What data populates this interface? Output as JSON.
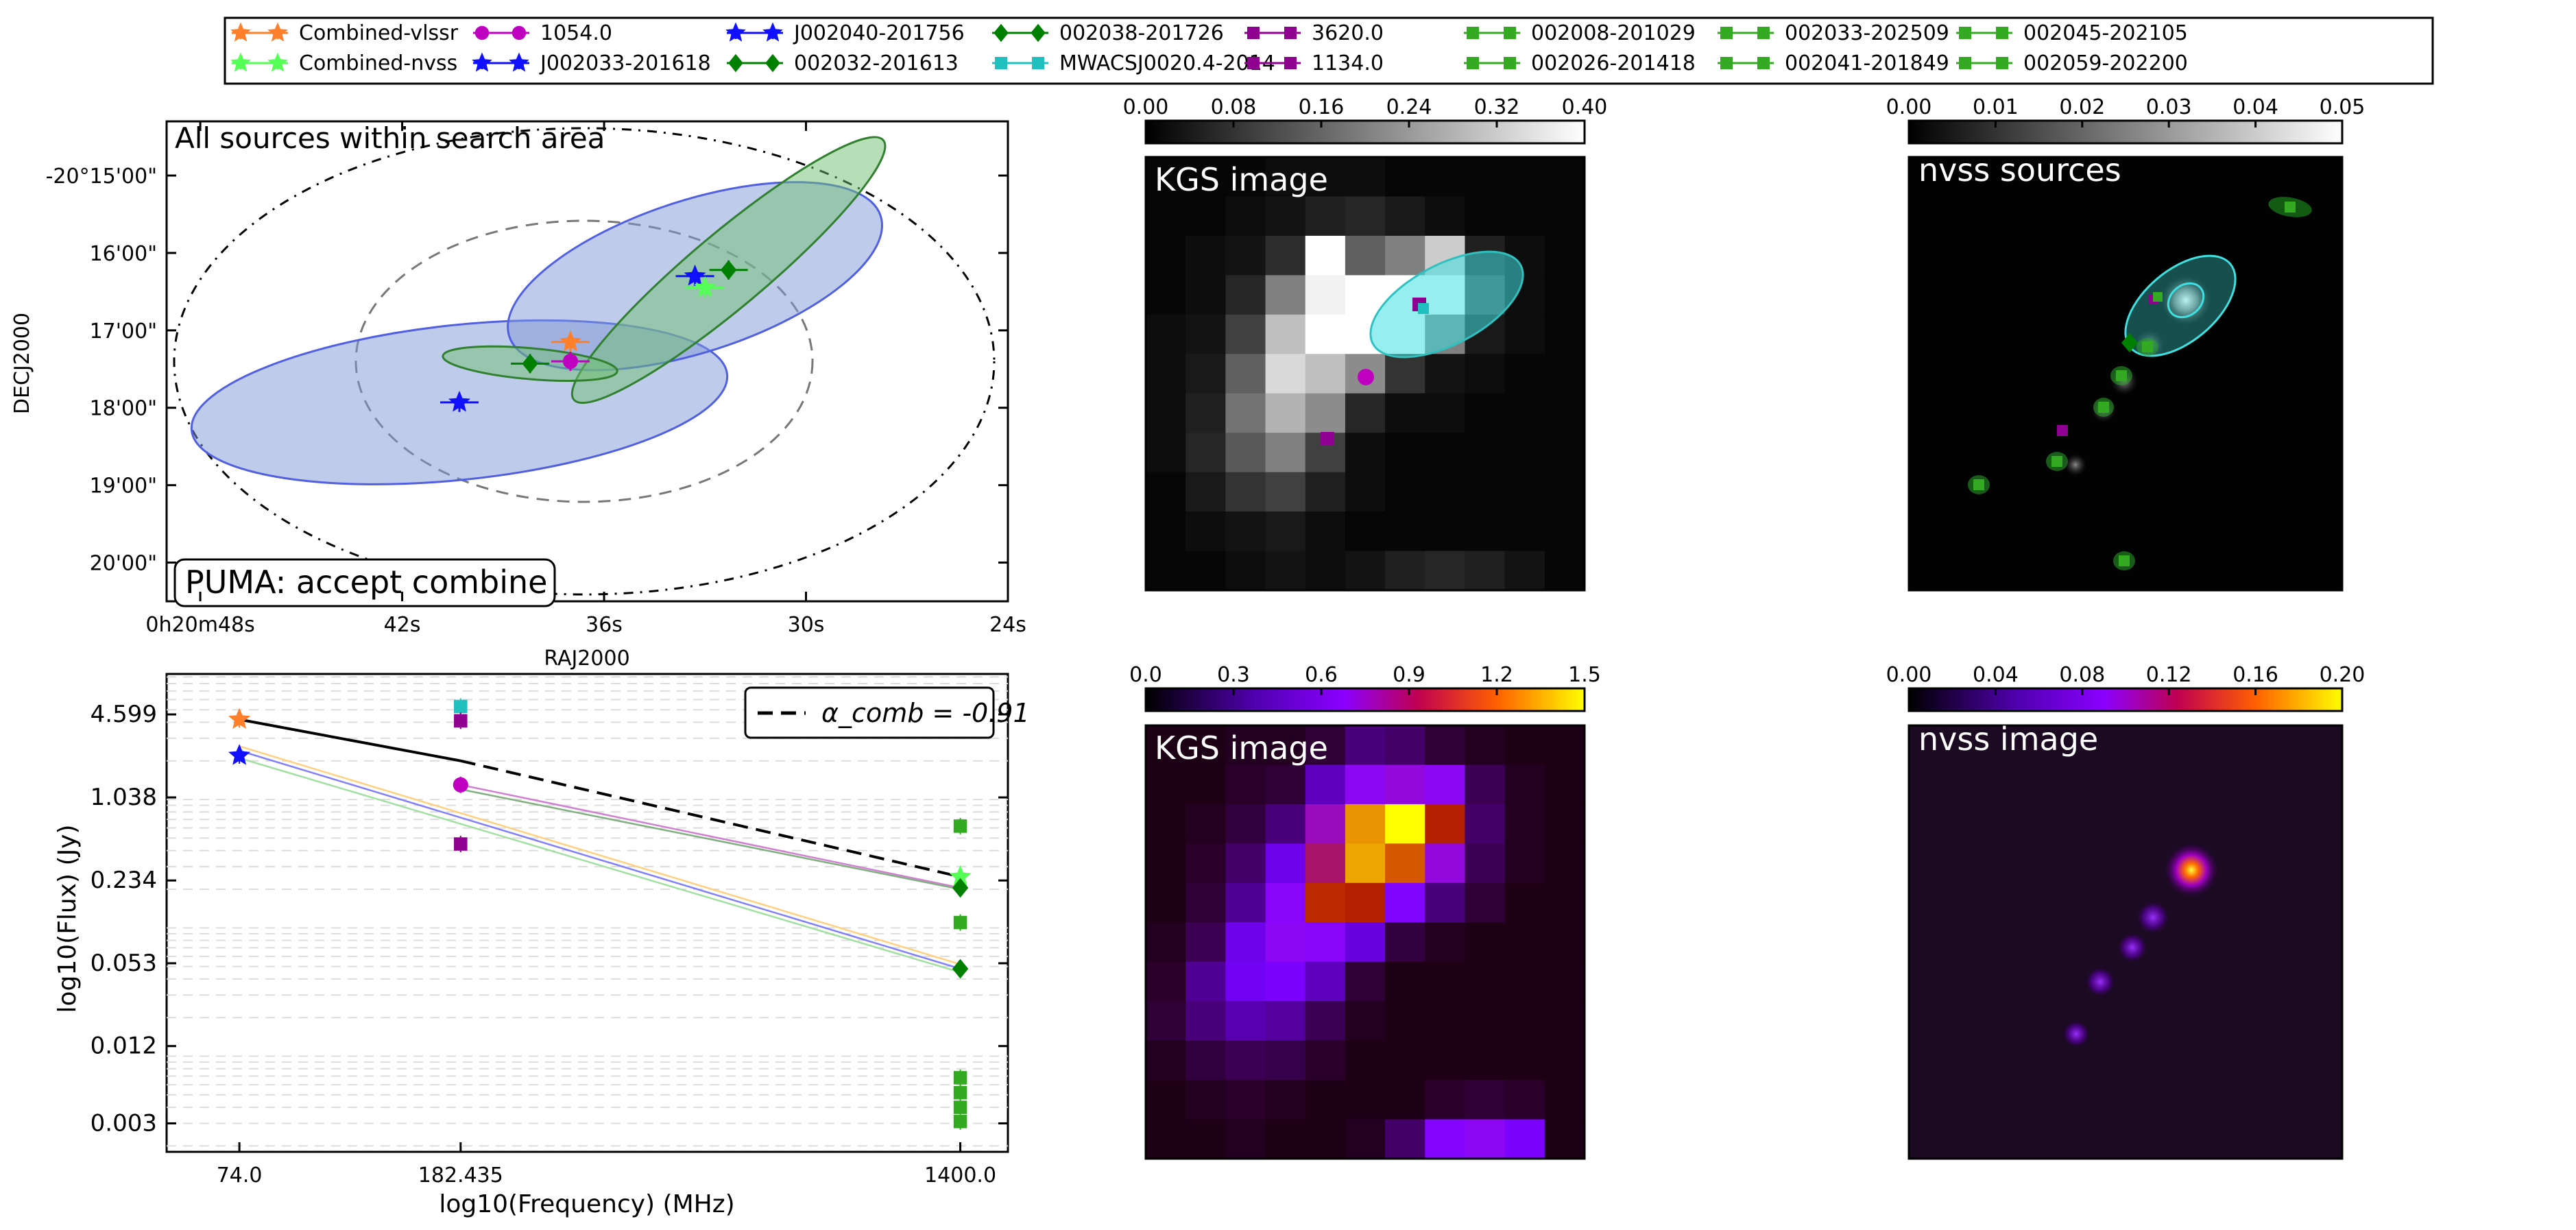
{
  "legend": {
    "entries": [
      {
        "label": "Combined-vlssr",
        "color": "#ff7f2a",
        "marker": "star"
      },
      {
        "label": "Combined-nvss",
        "color": "#55ff55",
        "marker": "star"
      },
      {
        "label": "1054.0",
        "color": "#c000c0",
        "marker": "circle"
      },
      {
        "label": "J002033-201618",
        "color": "#1010ff",
        "marker": "star"
      },
      {
        "label": "J002040-201756",
        "color": "#1010ff",
        "marker": "star"
      },
      {
        "label": "002032-201613",
        "color": "#008000",
        "marker": "diamond"
      },
      {
        "label": "002038-201726",
        "color": "#008000",
        "marker": "diamond"
      },
      {
        "label": "MWACSJ0020.4-2014",
        "color": "#20c0c0",
        "marker": "square"
      },
      {
        "label": "3620.0",
        "color": "#900090",
        "marker": "square"
      },
      {
        "label": "1134.0",
        "color": "#900090",
        "marker": "square"
      },
      {
        "label": "002008-201029",
        "color": "#33aa22",
        "marker": "square"
      },
      {
        "label": "002026-201418",
        "color": "#33aa22",
        "marker": "square"
      },
      {
        "label": "002033-202509",
        "color": "#33aa22",
        "marker": "square"
      },
      {
        "label": "002041-201849",
        "color": "#33aa22",
        "marker": "square"
      },
      {
        "label": "002045-202105",
        "color": "#33aa22",
        "marker": "square"
      },
      {
        "label": "002059-202200",
        "color": "#33aa22",
        "marker": "square"
      }
    ]
  },
  "chart_data": [
    {
      "type": "scatter",
      "title": "All sources within search area",
      "annotation": "PUMA: accept combine",
      "xlabel": "RAJ2000",
      "ylabel": "DECJ2000",
      "xticks": [
        "0h20m48s",
        "42s",
        "36s",
        "30s",
        "24s"
      ],
      "yticks": [
        "-20°15'00\"",
        "16'00\"",
        "17'00\"",
        "18'00\"",
        "19'00\"",
        "20'00\""
      ],
      "xlim_sec": [
        49,
        24
      ],
      "ylim_arcmin": [
        -14.3,
        -20.5
      ],
      "points": [
        {
          "name": "J002040-201756",
          "ra_sec": 40.3,
          "dec_arcmin": -17.93,
          "marker": "star",
          "color": "#1010ff"
        },
        {
          "name": "J002033-201618",
          "ra_sec": 33.3,
          "dec_arcmin": -16.3,
          "marker": "star",
          "color": "#1010ff"
        },
        {
          "name": "002038-201726",
          "ra_sec": 38.2,
          "dec_arcmin": -17.43,
          "marker": "diamond",
          "color": "#008000"
        },
        {
          "name": "002032-201613",
          "ra_sec": 32.3,
          "dec_arcmin": -16.22,
          "marker": "diamond",
          "color": "#008000"
        },
        {
          "name": "1054.0",
          "ra_sec": 37.0,
          "dec_arcmin": -17.4,
          "marker": "circle",
          "color": "#c000c0"
        },
        {
          "name": "Combined-vlssr",
          "ra_sec": 37.0,
          "dec_arcmin": -17.15,
          "marker": "star",
          "color": "#ff7f2a"
        },
        {
          "name": "Combined-nvss",
          "ra_sec": 33.0,
          "dec_arcmin": -16.45,
          "marker": "star",
          "color": "#55ff55"
        }
      ],
      "ellipses": [
        {
          "ra_sec": 40.3,
          "dec_arcmin": -17.93,
          "rx_sec": 8.0,
          "ry_arcmin": 1.0,
          "angle": -6,
          "fill": "#8098d8",
          "stroke": "#5060e0"
        },
        {
          "ra_sec": 33.3,
          "dec_arcmin": -16.3,
          "rx_sec": 5.8,
          "ry_arcmin": 0.98,
          "angle": -18,
          "fill": "#8098d8",
          "stroke": "#5060e0"
        },
        {
          "ra_sec": 32.3,
          "dec_arcmin": -16.22,
          "rx_sec": 6.0,
          "ry_arcmin": 0.48,
          "angle": -40,
          "fill": "#70c070",
          "stroke": "#308030"
        },
        {
          "ra_sec": 38.2,
          "dec_arcmin": -17.43,
          "rx_sec": 2.6,
          "ry_arcmin": 0.2,
          "angle": 5,
          "fill": "#70c070",
          "stroke": "#308030"
        }
      ]
    },
    {
      "type": "scatter",
      "xlabel": "log10(Frequency) (MHz)",
      "ylabel": "log10(Flux) (Jy)",
      "xticks": [
        "74.0",
        "182.435",
        "1400.0"
      ],
      "yticks": [
        "4.599",
        "1.038",
        "0.234",
        "0.053",
        "0.012",
        "0.003"
      ],
      "legend_label": "α_comb = -0.91",
      "x_scale": "log",
      "y_scale": "log",
      "xlim": [
        55,
        1700
      ],
      "ylim": [
        0.0018,
        9.5
      ],
      "points": [
        {
          "name": "Combined-vlssr",
          "x": 74.0,
          "y": 4.2,
          "marker": "star",
          "color": "#ff7f2a"
        },
        {
          "name": "J002040-201756",
          "x": 74.0,
          "y": 2.2,
          "marker": "star",
          "color": "#1010ff"
        },
        {
          "name": "MWACSJ0020.4-2014",
          "x": 182.435,
          "y": 5.3,
          "marker": "square",
          "color": "#20c0c0"
        },
        {
          "name": "3620.0",
          "x": 182.435,
          "y": 4.1,
          "marker": "square",
          "color": "#900090"
        },
        {
          "name": "1054.0",
          "x": 182.435,
          "y": 1.3,
          "marker": "circle",
          "color": "#c000c0"
        },
        {
          "name": "1134.0",
          "x": 182.435,
          "y": 0.45,
          "marker": "square",
          "color": "#900090"
        },
        {
          "name": "002008-201029",
          "x": 1400.0,
          "y": 0.62,
          "marker": "square",
          "color": "#33aa22"
        },
        {
          "name": "Combined-nvss",
          "x": 1400.0,
          "y": 0.25,
          "marker": "star",
          "color": "#55ff55"
        },
        {
          "name": "002032-201613",
          "x": 1400.0,
          "y": 0.205,
          "marker": "diamond",
          "color": "#008000"
        },
        {
          "name": "002026-201418",
          "x": 1400.0,
          "y": 0.11,
          "marker": "square",
          "color": "#33aa22"
        },
        {
          "name": "002038-201726",
          "x": 1400.0,
          "y": 0.048,
          "marker": "diamond",
          "color": "#008000"
        },
        {
          "name": "002033-202509",
          "x": 1400.0,
          "y": 0.0068,
          "marker": "square",
          "color": "#33aa22"
        },
        {
          "name": "002041-201849",
          "x": 1400.0,
          "y": 0.0052,
          "marker": "square",
          "color": "#33aa22"
        },
        {
          "name": "002045-202105",
          "x": 1400.0,
          "y": 0.004,
          "marker": "square",
          "color": "#33aa22"
        },
        {
          "name": "002059-202200",
          "x": 1400.0,
          "y": 0.0031,
          "marker": "square",
          "color": "#33aa22"
        }
      ],
      "lines": [
        {
          "x": [
            74.0,
            182.435
          ],
          "y": [
            4.2,
            2.0
          ],
          "style": "solid",
          "color": "#000000"
        },
        {
          "x": [
            182.435,
            1400.0
          ],
          "y": [
            2.0,
            0.25
          ],
          "style": "dashed",
          "color": "#000000"
        },
        {
          "x": [
            74.0,
            1400.0
          ],
          "y": [
            2.4,
            0.048
          ],
          "style": "solid",
          "color": "#8080ff"
        },
        {
          "x": [
            74.0,
            1400.0
          ],
          "y": [
            2.6,
            0.052
          ],
          "style": "solid",
          "color": "#ffd080"
        },
        {
          "x": [
            74.0,
            1400.0
          ],
          "y": [
            2.1,
            0.045
          ],
          "style": "solid",
          "color": "#a0e0a0"
        },
        {
          "x": [
            182.435,
            1400.0
          ],
          "y": [
            1.3,
            0.205
          ],
          "style": "solid",
          "color": "#d080d0"
        },
        {
          "x": [
            182.435,
            1400.0
          ],
          "y": [
            1.2,
            0.2
          ],
          "style": "solid",
          "color": "#80b080"
        }
      ]
    },
    {
      "type": "heatmap",
      "label": "KGS image",
      "colormap": "gray",
      "colorbar_ticks": [
        "0.00",
        "0.08",
        "0.16",
        "0.24",
        "0.32",
        "0.40"
      ],
      "vmin": 0,
      "vmax": 0.4,
      "values": [
        [
          0.01,
          0.01,
          0.01,
          0.02,
          0.02,
          0.02,
          0.01,
          0.01,
          0.01,
          0.01,
          0.01
        ],
        [
          0.01,
          0.01,
          0.02,
          0.03,
          0.05,
          0.06,
          0.04,
          0.02,
          0.01,
          0.01,
          0.01
        ],
        [
          0.01,
          0.02,
          0.03,
          0.07,
          0.42,
          0.15,
          0.2,
          0.32,
          0.05,
          0.02,
          0.01
        ],
        [
          0.01,
          0.02,
          0.06,
          0.2,
          0.38,
          0.45,
          0.45,
          0.48,
          0.1,
          0.02,
          0.01
        ],
        [
          0.02,
          0.03,
          0.1,
          0.3,
          0.45,
          0.45,
          0.4,
          0.2,
          0.04,
          0.02,
          0.01
        ],
        [
          0.02,
          0.04,
          0.15,
          0.34,
          0.3,
          0.22,
          0.08,
          0.03,
          0.02,
          0.01,
          0.01
        ],
        [
          0.02,
          0.05,
          0.18,
          0.28,
          0.22,
          0.06,
          0.02,
          0.02,
          0.01,
          0.01,
          0.01
        ],
        [
          0.02,
          0.06,
          0.14,
          0.2,
          0.1,
          0.02,
          0.01,
          0.01,
          0.01,
          0.01,
          0.01
        ],
        [
          0.01,
          0.04,
          0.08,
          0.1,
          0.05,
          0.02,
          0.01,
          0.01,
          0.01,
          0.01,
          0.01
        ],
        [
          0.01,
          0.02,
          0.03,
          0.04,
          0.02,
          0.01,
          0.01,
          0.01,
          0.01,
          0.01,
          0.01
        ],
        [
          0.01,
          0.01,
          0.02,
          0.03,
          0.02,
          0.03,
          0.05,
          0.06,
          0.05,
          0.03,
          0.01
        ]
      ]
    },
    {
      "type": "heatmap",
      "label": "nvss sources",
      "colormap": "gray",
      "colorbar_ticks": [
        "0.00",
        "0.01",
        "0.02",
        "0.03",
        "0.04",
        "0.05"
      ]
    },
    {
      "type": "heatmap",
      "label": "KGS image",
      "colormap": "gnuplot",
      "colorbar_ticks": [
        "0.0",
        "0.3",
        "0.6",
        "0.9",
        "1.2",
        "1.5"
      ],
      "vmin": 0,
      "vmax": 1.5,
      "values": [
        [
          0.02,
          0.02,
          0.03,
          0.03,
          0.05,
          0.12,
          0.1,
          0.05,
          0.03,
          0.02,
          0.02
        ],
        [
          0.02,
          0.02,
          0.04,
          0.05,
          0.2,
          0.45,
          0.5,
          0.45,
          0.08,
          0.03,
          0.02
        ],
        [
          0.02,
          0.03,
          0.06,
          0.12,
          0.55,
          1.25,
          1.55,
          0.75,
          0.1,
          0.03,
          0.02
        ],
        [
          0.02,
          0.04,
          0.1,
          0.28,
          0.65,
          1.3,
          1.05,
          0.5,
          0.08,
          0.03,
          0.02
        ],
        [
          0.02,
          0.05,
          0.15,
          0.42,
          0.82,
          0.75,
          0.38,
          0.12,
          0.05,
          0.02,
          0.02
        ],
        [
          0.03,
          0.08,
          0.28,
          0.45,
          0.42,
          0.25,
          0.06,
          0.03,
          0.02,
          0.02,
          0.02
        ],
        [
          0.04,
          0.15,
          0.3,
          0.35,
          0.2,
          0.05,
          0.02,
          0.02,
          0.02,
          0.02,
          0.02
        ],
        [
          0.05,
          0.12,
          0.18,
          0.16,
          0.08,
          0.03,
          0.02,
          0.02,
          0.02,
          0.02,
          0.02
        ],
        [
          0.03,
          0.06,
          0.08,
          0.07,
          0.04,
          0.02,
          0.02,
          0.02,
          0.02,
          0.02,
          0.02
        ],
        [
          0.02,
          0.03,
          0.04,
          0.03,
          0.02,
          0.02,
          0.02,
          0.04,
          0.05,
          0.04,
          0.02
        ],
        [
          0.02,
          0.02,
          0.03,
          0.02,
          0.02,
          0.03,
          0.1,
          0.4,
          0.45,
          0.35,
          0.02
        ]
      ]
    },
    {
      "type": "heatmap",
      "label": "nvss image",
      "colormap": "gnuplot",
      "colorbar_ticks": [
        "0.00",
        "0.04",
        "0.08",
        "0.12",
        "0.16",
        "0.20"
      ]
    }
  ]
}
